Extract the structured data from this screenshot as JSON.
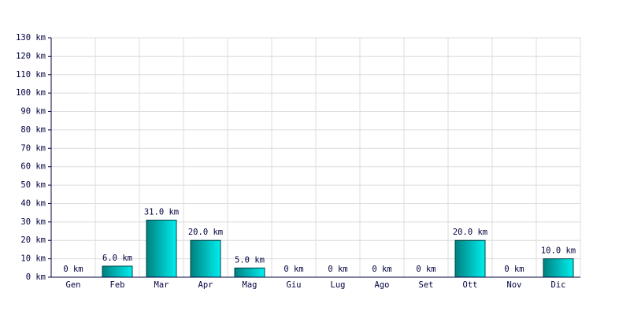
{
  "chart_data": {
    "type": "bar",
    "categories": [
      "Gen",
      "Feb",
      "Mar",
      "Apr",
      "Mag",
      "Giu",
      "Lug",
      "Ago",
      "Set",
      "Ott",
      "Nov",
      "Dic"
    ],
    "values": [
      0,
      6,
      31,
      20,
      5,
      0,
      0,
      0,
      0,
      20,
      0,
      10
    ],
    "value_labels": [
      "0 km",
      "6.0 km",
      "31.0 km",
      "20.0 km",
      "5.0 km",
      "0 km",
      "0 km",
      "0 km",
      "0 km",
      "20.0 km",
      "0 km",
      "10.0 km"
    ],
    "color": "#00eeee",
    "ylim": [
      0,
      130
    ],
    "yticks": [
      {
        "value": 0,
        "label": "0 km"
      },
      {
        "value": 10,
        "label": "10 km"
      },
      {
        "value": 20,
        "label": "20 km"
      },
      {
        "value": 30,
        "label": "30 km"
      },
      {
        "value": 40,
        "label": "40 km"
      },
      {
        "value": 50,
        "label": "50 km"
      },
      {
        "value": 60,
        "label": "60 km"
      },
      {
        "value": 70,
        "label": "70 km"
      },
      {
        "value": 80,
        "label": "80 km"
      },
      {
        "value": 90,
        "label": "90 km"
      },
      {
        "value": 100,
        "label": "100 km"
      },
      {
        "value": 110,
        "label": "110 km"
      },
      {
        "value": 120,
        "label": "120 km"
      },
      {
        "value": 130,
        "label": "130 km"
      }
    ],
    "grid": true
  }
}
